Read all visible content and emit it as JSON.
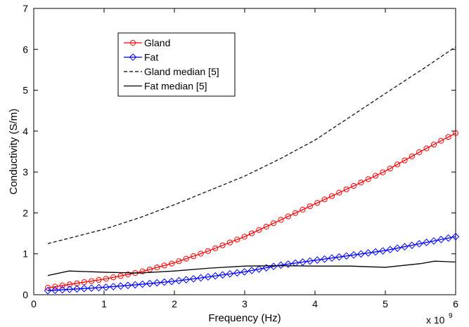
{
  "chart_data": {
    "type": "line",
    "title": "",
    "xlabel": "Frequency (Hz)",
    "ylabel": "Conductivity (S/m)",
    "x_multiplier_label": "x 10",
    "x_multiplier_exponent": "9",
    "xlim": [
      0,
      6
    ],
    "ylim": [
      0,
      7
    ],
    "xticks": [
      "0",
      "1",
      "2",
      "3",
      "4",
      "5",
      "6"
    ],
    "yticks": [
      "0",
      "1",
      "2",
      "3",
      "4",
      "5",
      "6",
      "7"
    ],
    "grid": false,
    "legend_position": "top-left",
    "series": [
      {
        "name": "Gland",
        "color": "#ff0000",
        "line_style": "solid",
        "marker": "circle",
        "x": [
          0.2,
          0.5,
          1.0,
          1.5,
          2.0,
          2.5,
          3.0,
          3.5,
          4.0,
          4.5,
          5.0,
          5.5,
          6.0
        ],
        "y": [
          0.17,
          0.25,
          0.38,
          0.55,
          0.78,
          1.08,
          1.42,
          1.82,
          2.22,
          2.62,
          3.02,
          3.5,
          3.95
        ]
      },
      {
        "name": "Fat",
        "color": "#0000ff",
        "line_style": "solid",
        "marker": "diamond",
        "x": [
          0.2,
          0.5,
          1.0,
          1.5,
          2.0,
          2.5,
          3.0,
          3.5,
          4.0,
          4.5,
          5.0,
          5.5,
          6.0
        ],
        "y": [
          0.1,
          0.13,
          0.18,
          0.25,
          0.33,
          0.44,
          0.56,
          0.72,
          0.84,
          0.96,
          1.08,
          1.25,
          1.42
        ]
      },
      {
        "name": "Gland median [5]",
        "color": "#000000",
        "line_style": "dashed",
        "marker": "none",
        "x": [
          0.2,
          0.5,
          1.0,
          1.5,
          2.0,
          2.5,
          3.0,
          3.5,
          4.0,
          4.5,
          5.0,
          5.5,
          6.0
        ],
        "y": [
          1.25,
          1.38,
          1.6,
          1.88,
          2.2,
          2.55,
          2.9,
          3.32,
          3.78,
          4.35,
          4.92,
          5.48,
          6.06
        ]
      },
      {
        "name": "Fat median [5]",
        "color": "#000000",
        "line_style": "solid",
        "marker": "none",
        "x": [
          0.2,
          0.5,
          1.0,
          1.5,
          2.0,
          2.5,
          3.0,
          3.5,
          4.0,
          4.5,
          5.0,
          5.5,
          5.7,
          6.0
        ],
        "y": [
          0.47,
          0.58,
          0.55,
          0.53,
          0.58,
          0.65,
          0.7,
          0.71,
          0.7,
          0.7,
          0.67,
          0.76,
          0.82,
          0.8
        ]
      }
    ]
  }
}
